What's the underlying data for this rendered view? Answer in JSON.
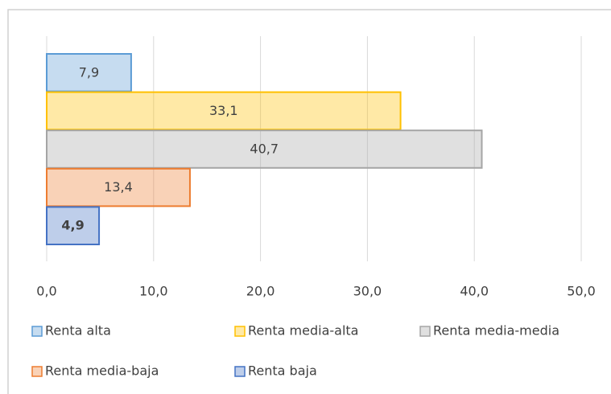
{
  "chart_data": {
    "type": "barh",
    "categories": [
      null
    ],
    "series": [
      {
        "name": "Renta alta",
        "color": "#5b9bd5",
        "values": [
          7.9
        ],
        "value_labels": [
          "7,9"
        ]
      },
      {
        "name": "Renta media-alta",
        "color": "#ffc000",
        "values": [
          33.1
        ],
        "value_labels": [
          "33,1"
        ]
      },
      {
        "name": "Renta media-media",
        "color": "#a5a5a5",
        "values": [
          40.7
        ],
        "value_labels": [
          "40,7"
        ]
      },
      {
        "name": "Renta media-baja",
        "color": "#ed7d31",
        "values": [
          13.4
        ],
        "value_labels": [
          "13,4"
        ]
      },
      {
        "name": "Renta baja",
        "color": "#4472c4",
        "values": [
          4.9
        ],
        "value_labels": [
          "4,9"
        ]
      }
    ],
    "xlim": [
      0,
      50
    ],
    "xticks": [
      {
        "value": 0,
        "label": "0,0"
      },
      {
        "value": 10,
        "label": "10,0"
      },
      {
        "value": 20,
        "label": "20,0"
      },
      {
        "value": 30,
        "label": "30,0"
      },
      {
        "value": 40,
        "label": "40,0"
      },
      {
        "value": 50,
        "label": "50,0"
      }
    ],
    "grid": true
  }
}
